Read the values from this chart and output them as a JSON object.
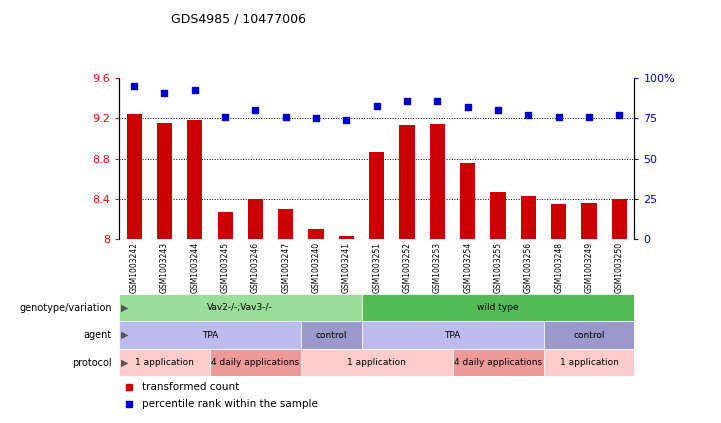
{
  "title": "GDS4985 / 10477006",
  "samples": [
    "GSM1003242",
    "GSM1003243",
    "GSM1003244",
    "GSM1003245",
    "GSM1003246",
    "GSM1003247",
    "GSM1003240",
    "GSM1003241",
    "GSM1003251",
    "GSM1003252",
    "GSM1003253",
    "GSM1003254",
    "GSM1003255",
    "GSM1003256",
    "GSM1003248",
    "GSM1003249",
    "GSM1003250"
  ],
  "red_values": [
    9.24,
    9.15,
    9.18,
    8.27,
    8.4,
    8.3,
    8.1,
    8.03,
    8.87,
    9.13,
    9.14,
    8.76,
    8.47,
    8.43,
    8.35,
    8.36,
    8.4
  ],
  "blue_percentile": [
    95,
    91,
    93,
    76,
    80,
    76,
    75,
    74,
    83,
    86,
    86,
    82,
    80,
    77,
    76,
    76,
    77
  ],
  "ylim_left": [
    8.0,
    9.6
  ],
  "ylim_right": [
    0,
    100
  ],
  "yticks_left": [
    8.0,
    8.4,
    8.8,
    9.2,
    9.6
  ],
  "yticks_right": [
    0,
    25,
    50,
    75,
    100
  ],
  "ytick_labels_left": [
    "8",
    "8.4",
    "8.8",
    "9.2",
    "9.6"
  ],
  "ytick_labels_right": [
    "0",
    "25",
    "50",
    "75",
    "100%"
  ],
  "hlines": [
    9.2,
    8.8,
    8.4
  ],
  "bar_color": "#cc0000",
  "dot_color": "#0000cc",
  "genotype_segments": [
    {
      "text": "Vav2-/-;Vav3-/-",
      "start": 0,
      "end": 8,
      "color": "#99dd99"
    },
    {
      "text": "wild type",
      "start": 8,
      "end": 17,
      "color": "#55bb55"
    }
  ],
  "agent_segments": [
    {
      "text": "TPA",
      "start": 0,
      "end": 6,
      "color": "#bbbbee"
    },
    {
      "text": "control",
      "start": 6,
      "end": 8,
      "color": "#9999cc"
    },
    {
      "text": "TPA",
      "start": 8,
      "end": 14,
      "color": "#bbbbee"
    },
    {
      "text": "control",
      "start": 14,
      "end": 17,
      "color": "#9999cc"
    }
  ],
  "protocol_segments": [
    {
      "text": "1 application",
      "start": 0,
      "end": 3,
      "color": "#ffcccc"
    },
    {
      "text": "4 daily applications",
      "start": 3,
      "end": 6,
      "color": "#ee9999"
    },
    {
      "text": "1 application",
      "start": 6,
      "end": 11,
      "color": "#ffcccc"
    },
    {
      "text": "4 daily applications",
      "start": 11,
      "end": 14,
      "color": "#ee9999"
    },
    {
      "text": "1 application",
      "start": 14,
      "end": 17,
      "color": "#ffcccc"
    }
  ],
  "row_labels": [
    "genotype/variation",
    "agent",
    "protocol"
  ],
  "legend_red": "transformed count",
  "legend_blue": "percentile rank within the sample",
  "xtick_bg": "#cccccc"
}
